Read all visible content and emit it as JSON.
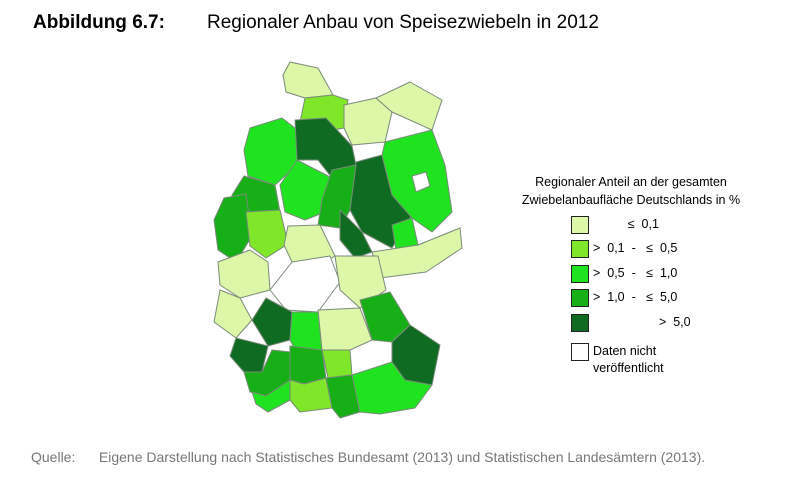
{
  "figure": {
    "label": "Abbildung 6.7:",
    "title": "Regionaler Anbau von Speisezwiebeln in 2012"
  },
  "legend": {
    "title_line1": "Regionaler Anteil an der gesamten",
    "title_line2": "Zwiebelanbaufläche Deutschlands in %",
    "classes": [
      {
        "label": "          ≤  0,1",
        "color": "#dcf7a8"
      },
      {
        "label": ">  0,1  -   ≤  0,5",
        "color": "#7fe62a"
      },
      {
        "label": ">  0,5  -   ≤  1,0",
        "color": "#1fe31f"
      },
      {
        "label": ">  1,0  -   ≤  5,0",
        "color": "#16b016"
      },
      {
        "label": "                   >  5,0",
        "color": "#0f6b22"
      }
    ],
    "nodata_line1": "Daten nicht",
    "nodata_line2": "veröffentlicht",
    "nodata_color": "#ffffff"
  },
  "source": {
    "label": "Quelle:",
    "text": "Eigene Darstellung nach Statistisches Bundesamt (2013) und Statistischen Landesämtern (2013)."
  },
  "regions": [
    {
      "name": "schleswig",
      "class": 0
    },
    {
      "name": "holstein-west",
      "class": 1
    },
    {
      "name": "mecklenburg-west",
      "class": 0
    },
    {
      "name": "vorpommern",
      "class": 0
    },
    {
      "name": "weser-ems",
      "class": 2
    },
    {
      "name": "lueneburg",
      "class": 4
    },
    {
      "name": "elbe-heide",
      "class": 4
    },
    {
      "name": "brandenburg",
      "class": 2
    },
    {
      "name": "brandenburg-sued",
      "class": 2
    },
    {
      "name": "berlin",
      "class": 5
    },
    {
      "name": "muenster",
      "class": 3
    },
    {
      "name": "hannover",
      "class": 2
    },
    {
      "name": "braunschweig",
      "class": 3
    },
    {
      "name": "sachsen-anhalt",
      "class": 4
    },
    {
      "name": "duesseldorf",
      "class": 3
    },
    {
      "name": "arnsberg",
      "class": 1
    },
    {
      "name": "kassel",
      "class": 0
    },
    {
      "name": "thueringen",
      "class": 5
    },
    {
      "name": "sachsen",
      "class": 0
    },
    {
      "name": "koeln",
      "class": 0
    },
    {
      "name": "koblenz",
      "class": 0
    },
    {
      "name": "giessen",
      "class": 0
    },
    {
      "name": "darmstadt",
      "class": 4
    },
    {
      "name": "unterfranken",
      "class": 2
    },
    {
      "name": "oberfranken",
      "class": 0
    },
    {
      "name": "oberpfalz",
      "class": 3
    },
    {
      "name": "pfalz",
      "class": 4
    },
    {
      "name": "karlsruhe",
      "class": 3
    },
    {
      "name": "stuttgart",
      "class": 3
    },
    {
      "name": "mittelfranken",
      "class": 1
    },
    {
      "name": "niederbayern",
      "class": 4
    },
    {
      "name": "freiburg",
      "class": 2
    },
    {
      "name": "tuebingen",
      "class": 1
    },
    {
      "name": "schwaben",
      "class": 3
    },
    {
      "name": "oberbayern",
      "class": 2
    }
  ]
}
